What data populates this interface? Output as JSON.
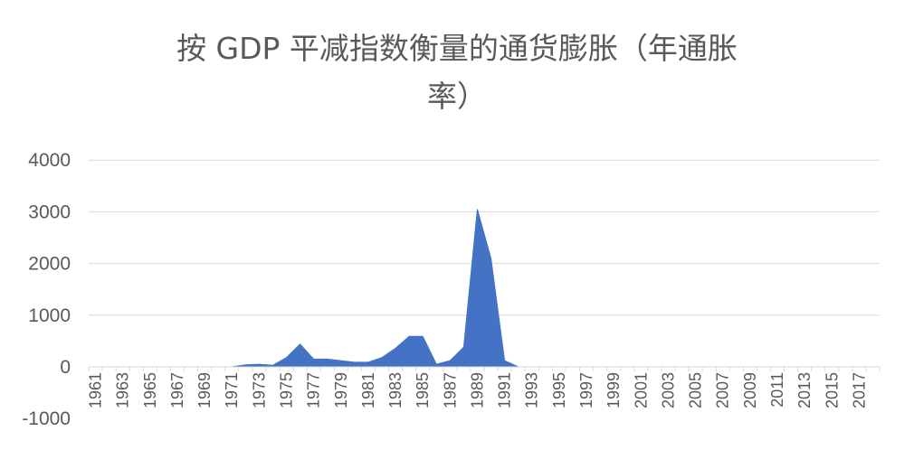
{
  "chart_data": {
    "type": "area",
    "title_lines": [
      "按 GDP 平减指数衡量的通货膨胀（年通胀",
      "率）"
    ],
    "xlabel": "",
    "ylabel": "",
    "ylim": [
      -1000,
      4000
    ],
    "y_ticks": [
      "4000",
      "3000",
      "2000",
      "1000",
      "0",
      "-1000"
    ],
    "y_tick_values": [
      4000,
      3000,
      2000,
      1000,
      0,
      -1000
    ],
    "x_tick_labels": [
      "1961",
      "1963",
      "1965",
      "1967",
      "1969",
      "1971",
      "1973",
      "1975",
      "1977",
      "1979",
      "1981",
      "1983",
      "1985",
      "1987",
      "1989",
      "1991",
      "1993",
      "1995",
      "1997",
      "1999",
      "2001",
      "2003",
      "2005",
      "2007",
      "2009",
      "2011",
      "2013",
      "2015",
      "2017"
    ],
    "grid": true,
    "legend": "none",
    "color": "#4472C4",
    "x": [
      1961,
      1962,
      1963,
      1964,
      1965,
      1966,
      1967,
      1968,
      1969,
      1970,
      1971,
      1972,
      1973,
      1974,
      1975,
      1976,
      1977,
      1978,
      1979,
      1980,
      1981,
      1982,
      1983,
      1984,
      1985,
      1986,
      1987,
      1988,
      1989,
      1990,
      1991,
      1992,
      1993,
      1994,
      1995,
      1996,
      1997,
      1998,
      1999,
      2000,
      2001,
      2002,
      2003,
      2004,
      2005,
      2006,
      2007,
      2008,
      2009,
      2010,
      2011,
      2012,
      2013,
      2014,
      2015,
      2016,
      2017,
      2018
    ],
    "values": [
      0,
      0,
      0,
      0,
      0,
      0,
      0,
      0,
      0,
      0,
      0,
      40,
      50,
      30,
      180,
      440,
      150,
      150,
      120,
      90,
      90,
      180,
      360,
      590,
      590,
      50,
      120,
      380,
      3050,
      2100,
      120,
      0,
      0,
      0,
      0,
      0,
      0,
      0,
      0,
      0,
      0,
      0,
      0,
      0,
      0,
      0,
      0,
      0,
      0,
      0,
      0,
      0,
      0,
      0,
      0,
      0,
      0,
      0
    ]
  }
}
